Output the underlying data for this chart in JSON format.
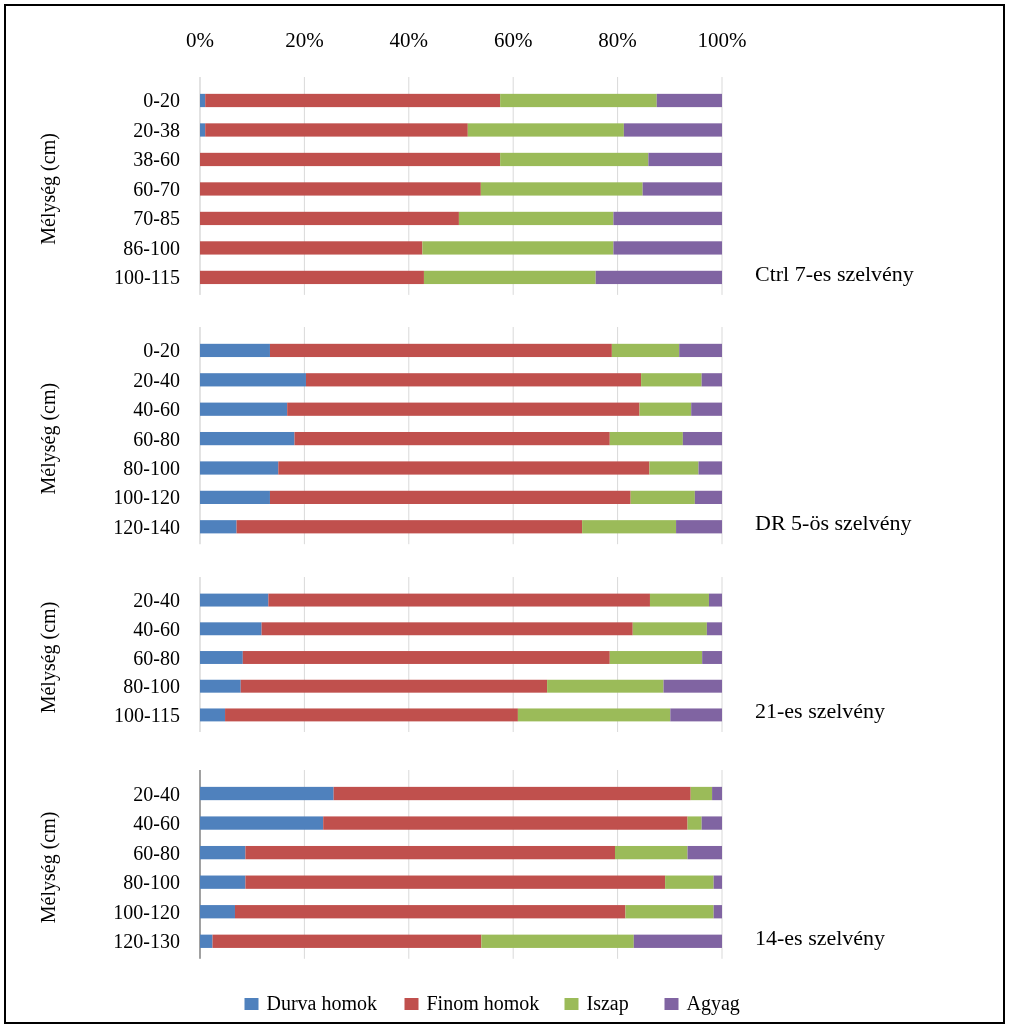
{
  "chart_data": [
    {
      "type": "bar",
      "orientation": "horizontal",
      "stacked": true,
      "annotations": [
        "Ctrl 7-es szelvény"
      ],
      "ylabel": "Mélység (cm)",
      "categories": [
        "0-20",
        "20-38",
        "38-60",
        "60-70",
        "70-85",
        "86-100",
        "100-115"
      ],
      "series": [
        {
          "color": "#4f81bd",
          "values": [
            1,
            1,
            0,
            0,
            0,
            0,
            0
          ]
        },
        {
          "color": "#c0504d",
          "values": [
            56.5,
            50.3,
            57.5,
            53.8,
            49.6,
            42.6,
            42.9
          ]
        },
        {
          "color": "#9bbb59",
          "values": [
            30,
            29.9,
            28.4,
            31,
            29.6,
            36.6,
            32.9
          ]
        },
        {
          "color": "#8064a2",
          "values": [
            12.5,
            18.8,
            14.1,
            15.2,
            20.8,
            20.8,
            24.2
          ]
        }
      ],
      "xlim": [
        0,
        100
      ],
      "xticks": [
        {
          "value": 0,
          "label": "0%"
        },
        {
          "value": 20,
          "label": "20%"
        },
        {
          "value": 40,
          "label": "40%"
        },
        {
          "value": 60,
          "label": "60%"
        },
        {
          "value": 80,
          "label": "80%"
        },
        {
          "value": 100,
          "label": "100%"
        }
      ],
      "grid": "x"
    },
    {
      "type": "bar",
      "orientation": "horizontal",
      "stacked": true,
      "annotations": [
        "DR 5-ös szelvény"
      ],
      "ylabel": "Mélység (cm)",
      "categories": [
        "0-20",
        "20-40",
        "40-60",
        "60-80",
        "80-100",
        "100-120",
        "120-140"
      ],
      "series": [
        {
          "color": "#4f81bd",
          "values": [
            13.4,
            20.3,
            16.7,
            18.1,
            15,
            13.4,
            7
          ]
        },
        {
          "color": "#c0504d",
          "values": [
            65.5,
            64.2,
            67.5,
            60.4,
            71.1,
            69.1,
            66.2
          ]
        },
        {
          "color": "#9bbb59",
          "values": [
            12.9,
            11.6,
            9.9,
            14,
            9.4,
            12.3,
            18
          ]
        },
        {
          "color": "#8064a2",
          "values": [
            8.2,
            3.9,
            5.9,
            7.5,
            4.5,
            5.2,
            8.8
          ]
        }
      ],
      "xlim": [
        0,
        100
      ],
      "xticks": [
        {
          "value": 0,
          "label": null
        },
        {
          "value": 20,
          "label": null
        },
        {
          "value": 40,
          "label": null
        },
        {
          "value": 60,
          "label": null
        },
        {
          "value": 80,
          "label": null
        },
        {
          "value": 100,
          "label": null
        }
      ],
      "grid": "x",
      "tick_labels": "y"
    },
    {
      "type": "bar",
      "orientation": "horizontal",
      "stacked": true,
      "annotations": [
        "21-es szelvény"
      ],
      "ylabel": "Mélység (cm)",
      "categories": [
        "20-40",
        "40-60",
        "60-80",
        "80-100",
        "100-115"
      ],
      "series": [
        {
          "color": "#4f81bd",
          "values": [
            13.1,
            11.8,
            8.2,
            7.8,
            4.8
          ]
        },
        {
          "color": "#c0504d",
          "values": [
            73.1,
            71.1,
            70.3,
            58.7,
            56.1
          ]
        },
        {
          "color": "#9bbb59",
          "values": [
            11.3,
            14.2,
            17.7,
            22.3,
            29.2
          ]
        },
        {
          "color": "#8064a2",
          "values": [
            2.5,
            2.9,
            3.8,
            11.2,
            9.9
          ]
        }
      ],
      "xlim": [
        0,
        100
      ],
      "xticks": [
        {
          "value": 0,
          "label": null
        },
        {
          "value": 20,
          "label": null
        },
        {
          "value": 40,
          "label": null
        },
        {
          "value": 60,
          "label": null
        },
        {
          "value": 80,
          "label": null
        },
        {
          "value": 100,
          "label": null
        }
      ],
      "grid": "x",
      "tick_labels": "y"
    },
    {
      "type": "bar",
      "orientation": "horizontal",
      "stacked": true,
      "annotations": [
        "14-es szelvény"
      ],
      "ylabel": "Mélység (cm)",
      "categories": [
        "20-40",
        "40-60",
        "60-80",
        "80-100",
        "100-120",
        "120-130"
      ],
      "series": [
        {
          "name": "Durva homok",
          "color": "#4f81bd",
          "values": [
            25.6,
            23.6,
            8.7,
            8.7,
            6.7,
            2.4
          ]
        },
        {
          "name": "Finom homok",
          "color": "#c0504d",
          "values": [
            68.4,
            69.8,
            70.8,
            80.4,
            74.8,
            51.5
          ]
        },
        {
          "name": "Iszap",
          "color": "#9bbb59",
          "values": [
            4.1,
            2.7,
            13.9,
            9.3,
            16.9,
            29.2
          ]
        },
        {
          "name": "Agyag",
          "color": "#8064a2",
          "values": [
            1.9,
            3.9,
            6.6,
            1.6,
            1.6,
            16.9
          ]
        }
      ],
      "xlim": [
        0,
        100
      ],
      "xticks": [
        {
          "value": 0,
          "label": null
        },
        {
          "value": 20,
          "label": null
        },
        {
          "value": 40,
          "label": null
        },
        {
          "value": 60,
          "label": null
        },
        {
          "value": 80,
          "label": null
        },
        {
          "value": 100,
          "label": null
        }
      ],
      "grid": "x",
      "tick_labels": "y",
      "legend": "bottom"
    }
  ]
}
